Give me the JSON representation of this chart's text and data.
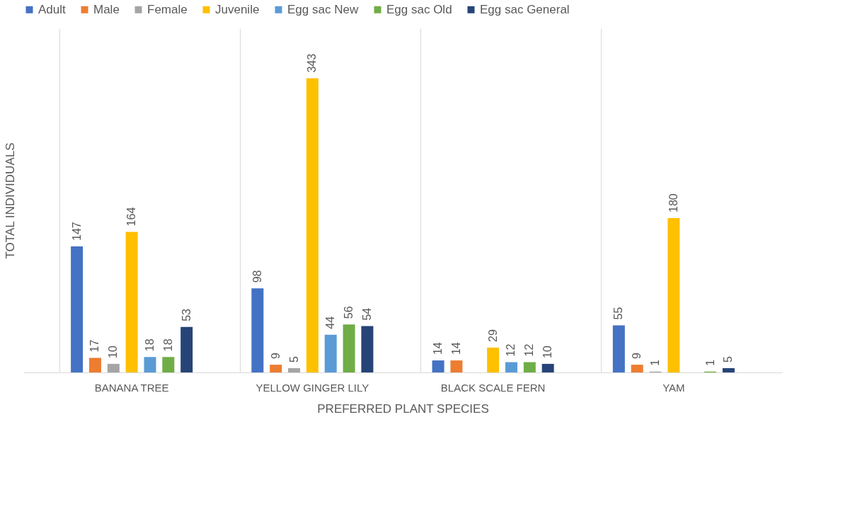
{
  "chart_data": {
    "type": "bar",
    "xlabel": "PREFERRED PLANT SPECIES",
    "ylabel": "TOTAL INDIVIDUALS",
    "categories": [
      "BANANA TREE",
      "YELLOW GINGER LILY",
      "BLACK SCALE FERN",
      "YAM"
    ],
    "series": [
      {
        "name": "Adult",
        "color": "#4472c4",
        "values": [
          147,
          98,
          14,
          55
        ]
      },
      {
        "name": "Male",
        "color": "#ed7d31",
        "values": [
          17,
          9,
          14,
          9
        ]
      },
      {
        "name": "Female",
        "color": "#a5a5a5",
        "values": [
          10,
          5,
          null,
          1
        ]
      },
      {
        "name": "Juvenile",
        "color": "#ffc000",
        "values": [
          164,
          343,
          29,
          180
        ]
      },
      {
        "name": "Egg sac New",
        "color": "#5b9bd5",
        "values": [
          18,
          44,
          12,
          null
        ]
      },
      {
        "name": "Egg sac Old",
        "color": "#70ad47",
        "values": [
          18,
          56,
          12,
          1
        ]
      },
      {
        "name": "Egg sac General",
        "color": "#264478",
        "values": [
          53,
          54,
          10,
          5
        ]
      }
    ],
    "data_labels": true,
    "grid": "x",
    "legend": "top"
  }
}
